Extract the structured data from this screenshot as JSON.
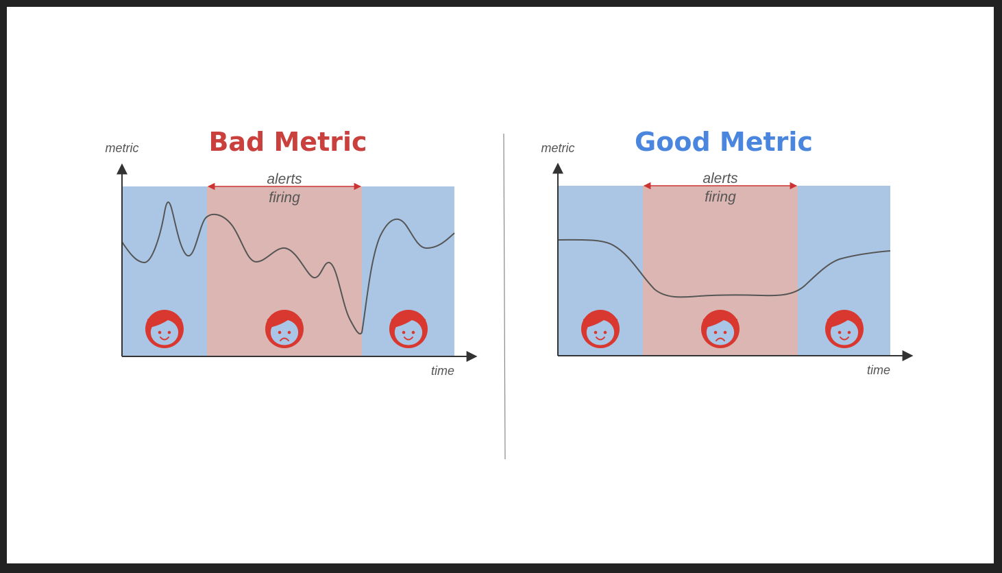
{
  "colors": {
    "ok_band": "#aac6e4",
    "alert_band": "#dbb6b2",
    "bad_title": "#c9403c",
    "good_title": "#4a86de",
    "face": "#d8382f",
    "face_skin": "#a9c6e6",
    "arrow": "#cc3333",
    "axis": "#333333",
    "curve": "#555555",
    "divider": "#888888"
  },
  "panels": [
    {
      "id": "bad",
      "title": "Bad Metric",
      "title_color_key": "bad_title",
      "y_axis_label": "metric",
      "x_axis_label": "time",
      "alert_label_line1": "alerts",
      "alert_label_line2": "firing",
      "curve_shape": "spiky",
      "faces": [
        "happy",
        "sad",
        "happy"
      ]
    },
    {
      "id": "good",
      "title": "Good Metric",
      "title_color_key": "good_title",
      "y_axis_label": "metric",
      "x_axis_label": "time",
      "alert_label_line1": "alerts",
      "alert_label_line2": "firing",
      "curve_shape": "smooth",
      "faces": [
        "happy",
        "sad",
        "happy"
      ]
    }
  ]
}
